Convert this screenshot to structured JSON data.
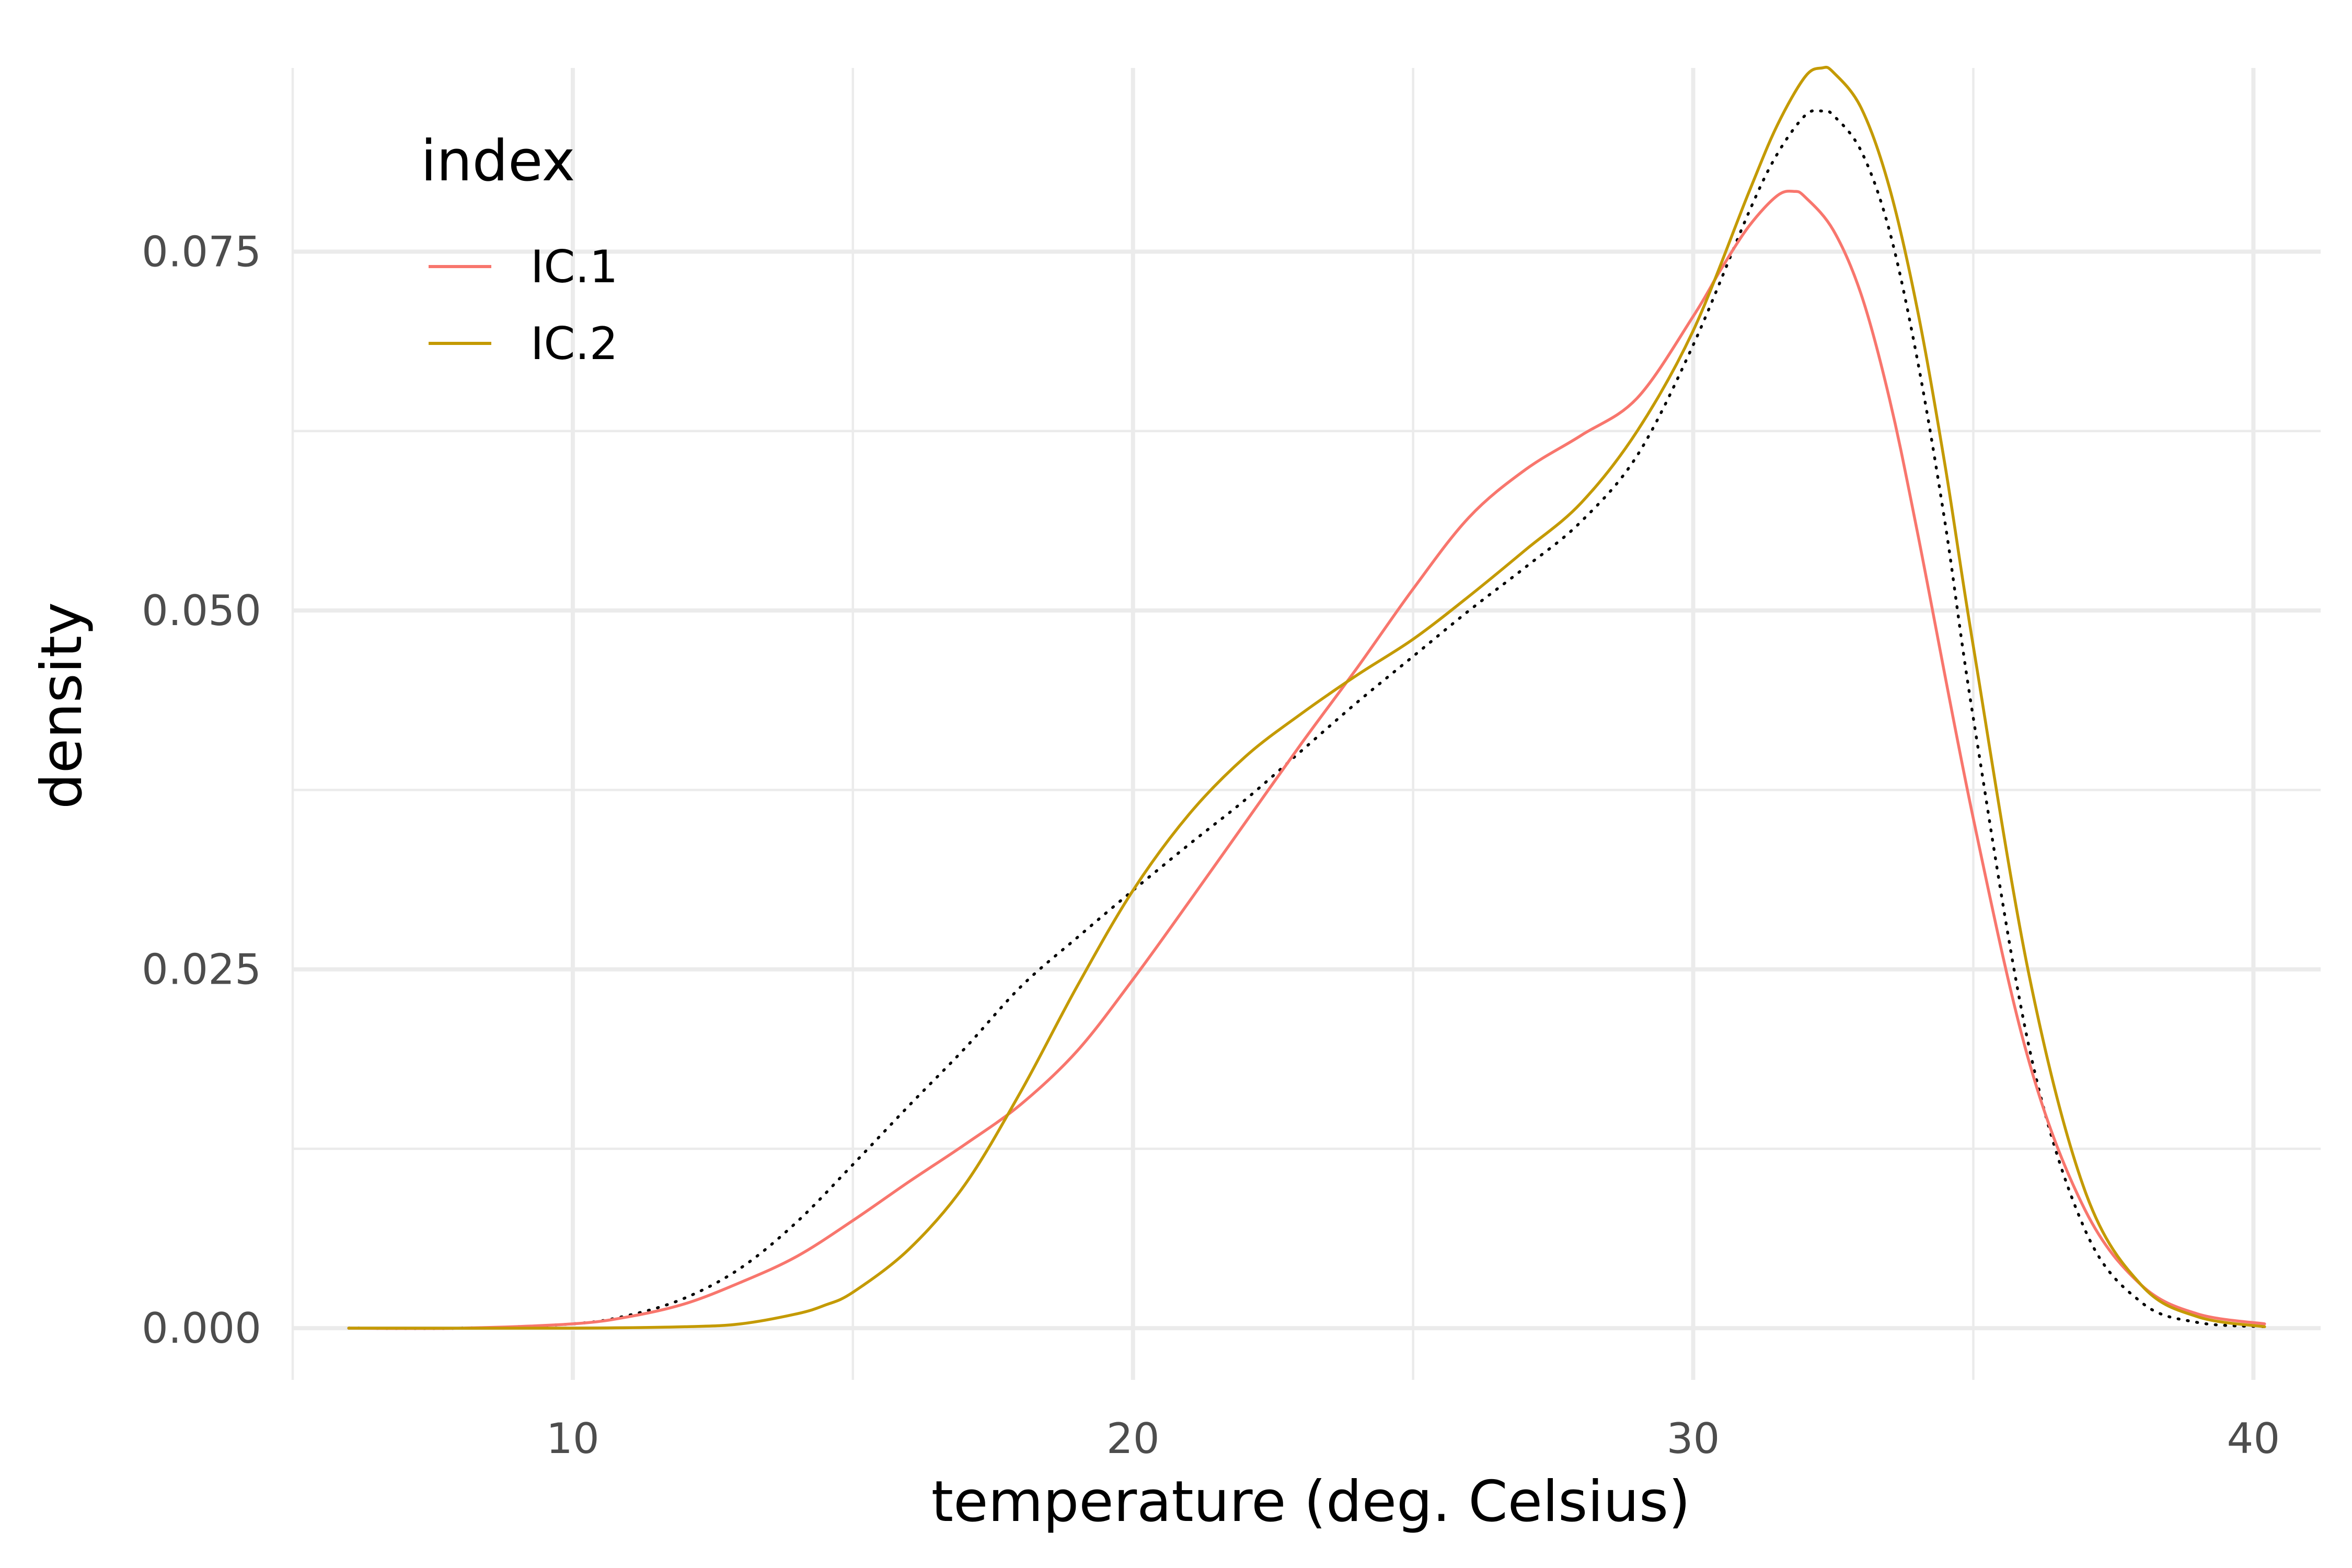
{
  "chart_data": {
    "type": "line",
    "xlabel": "temperature (deg. Celsius)",
    "ylabel": "density",
    "xlim": [
      5,
      41.2
    ],
    "ylim": [
      -0.0036,
      0.0878
    ],
    "x_ticks": [
      10,
      20,
      30,
      40
    ],
    "x_tick_labels": [
      "10",
      "20",
      "30",
      "40"
    ],
    "y_ticks": [
      0,
      0.025,
      0.05,
      0.075
    ],
    "y_tick_labels": [
      "0.000",
      "0.025",
      "0.050",
      "0.075"
    ],
    "x_minor_ticks": [
      5,
      15,
      25,
      35
    ],
    "y_minor_ticks": [
      0.0125,
      0.0375,
      0.0625
    ],
    "grid": true,
    "legend": {
      "title": "index",
      "position": "top-left",
      "items": [
        {
          "label": "IC.1",
          "color": "#F8766D"
        },
        {
          "label": "IC.2",
          "color": "#C49A00"
        }
      ]
    },
    "series": [
      {
        "name": "IC.1",
        "color": "#F8766D",
        "dash": "solid",
        "x": [
          6,
          8,
          10,
          11,
          12,
          13,
          14,
          15,
          16,
          17,
          18,
          19,
          20,
          21,
          22,
          23,
          24,
          25,
          26,
          27,
          28,
          29,
          30,
          30.5,
          31,
          31.5,
          31.8,
          32,
          32.5,
          33,
          33.5,
          34,
          35,
          36,
          37,
          38,
          39,
          40.2
        ],
        "y": [
          0,
          0,
          0.0003,
          0.0008,
          0.0017,
          0.0032,
          0.005,
          0.0075,
          0.0102,
          0.0128,
          0.0156,
          0.0193,
          0.0243,
          0.0297,
          0.0352,
          0.0407,
          0.046,
          0.0515,
          0.0565,
          0.0598,
          0.0622,
          0.0648,
          0.0705,
          0.0738,
          0.0768,
          0.0789,
          0.0792,
          0.0788,
          0.0765,
          0.072,
          0.0648,
          0.0555,
          0.0355,
          0.0185,
          0.0082,
          0.003,
          0.001,
          0.0003
        ]
      },
      {
        "name": "IC.2",
        "color": "#C49A00",
        "dash": "solid",
        "x": [
          6,
          10,
          12,
          13,
          14,
          14.5,
          15,
          16,
          17,
          18,
          19,
          20,
          21,
          22,
          23,
          24,
          25,
          26,
          27,
          28,
          29,
          30,
          31,
          31.5,
          32,
          32.3,
          32.5,
          33,
          33.5,
          34,
          34.5,
          35,
          36,
          37,
          38,
          39,
          40.2
        ],
        "y": [
          0,
          0,
          0.0001,
          0.0003,
          0.001,
          0.0016,
          0.0025,
          0.0055,
          0.01,
          0.0165,
          0.0238,
          0.0305,
          0.0358,
          0.0398,
          0.0428,
          0.0455,
          0.048,
          0.051,
          0.0542,
          0.0575,
          0.0625,
          0.0695,
          0.0792,
          0.0838,
          0.0872,
          0.0878,
          0.0875,
          0.085,
          0.0795,
          0.071,
          0.06,
          0.0475,
          0.0245,
          0.0095,
          0.003,
          0.0008,
          0.0001
        ]
      },
      {
        "name": "",
        "color": "#000000",
        "dash": "dotted",
        "x": [
          6,
          8,
          10,
          11,
          12,
          13,
          14,
          15,
          16,
          17,
          18,
          19,
          20,
          21,
          22,
          23,
          24,
          25,
          26,
          27,
          28,
          29,
          30,
          31,
          31.5,
          32,
          32.3,
          32.5,
          33,
          33.5,
          34,
          34.5,
          35,
          36,
          37,
          38,
          39,
          40.2
        ],
        "y": [
          0,
          0,
          0.0003,
          0.0009,
          0.0021,
          0.0042,
          0.0074,
          0.0114,
          0.0155,
          0.0195,
          0.0238,
          0.0272,
          0.0305,
          0.0337,
          0.0368,
          0.0402,
          0.0436,
          0.0468,
          0.05,
          0.053,
          0.0562,
          0.0608,
          0.0685,
          0.0778,
          0.0818,
          0.0845,
          0.0848,
          0.0845,
          0.082,
          0.0765,
          0.0675,
          0.056,
          0.0425,
          0.0195,
          0.0068,
          0.0018,
          0.0004,
          0.0001
        ]
      }
    ]
  }
}
